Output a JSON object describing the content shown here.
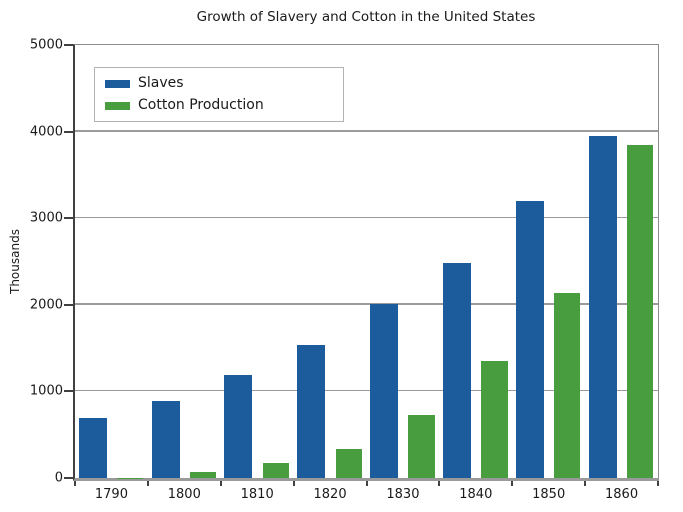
{
  "chart_data": {
    "type": "bar",
    "title": "Growth of Slavery and Cotton in the United States",
    "xlabel": "",
    "ylabel": "Thousands",
    "categories": [
      "1790",
      "1800",
      "1810",
      "1820",
      "1830",
      "1840",
      "1850",
      "1860"
    ],
    "series": [
      {
        "name": "Slaves",
        "color": "#1C5C9C",
        "values": [
          698,
          894,
          1191,
          1538,
          2009,
          2487,
          3204,
          3953
        ]
      },
      {
        "name": "Cotton Production",
        "color": "#489E3F",
        "values": [
          3,
          73,
          178,
          334,
          732,
          1348,
          2136,
          3841
        ]
      }
    ],
    "ylim": [
      0,
      5000
    ],
    "yticks": [
      0,
      1000,
      2000,
      3000,
      4000,
      5000
    ],
    "grid": true,
    "legend_position": "top-left",
    "colors": {
      "gridline": "#9b9b9b",
      "axis_spine": "#404040",
      "baseline": "#9a9a9a",
      "plot_border": "#8c8c8c",
      "legend_border": "#b3b3b3",
      "text": "#1a1a1a",
      "background": "#ffffff"
    }
  }
}
